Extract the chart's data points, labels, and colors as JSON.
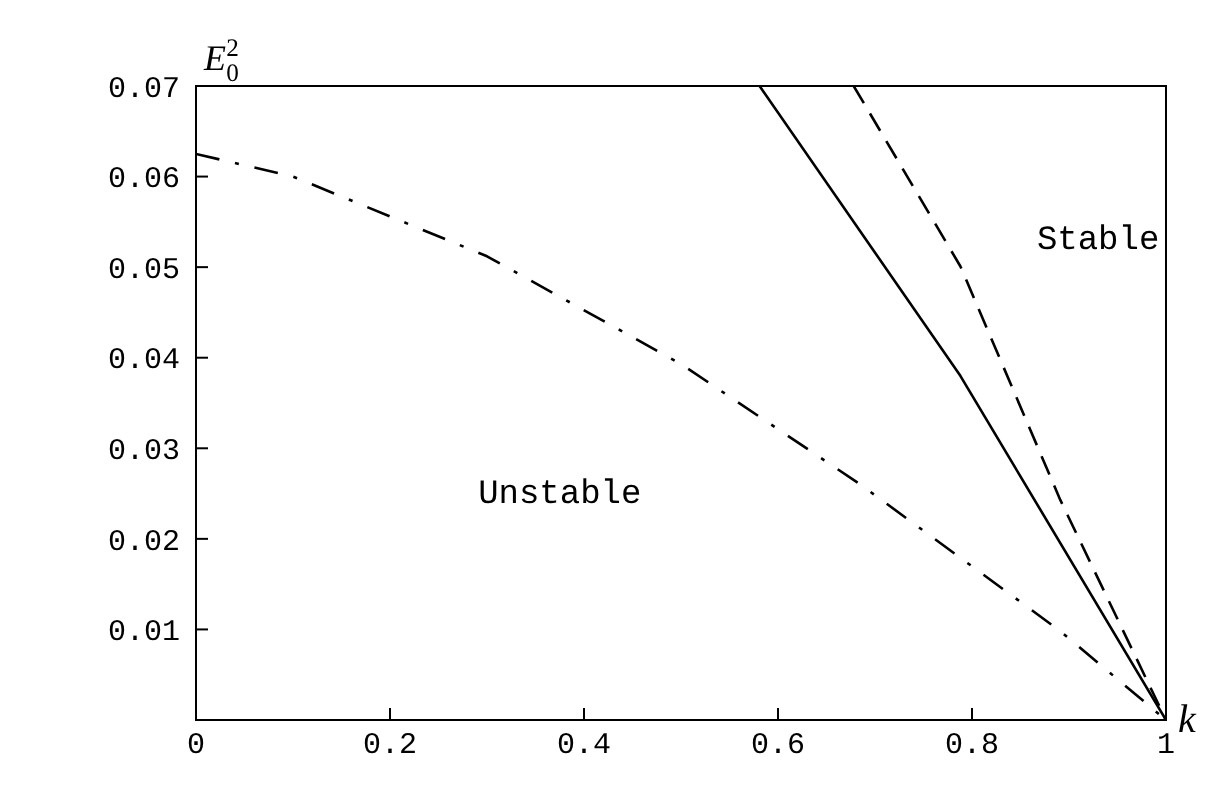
{
  "chart_data": {
    "type": "line",
    "xlabel": "k",
    "ylabel": "E$_{0}$$^{2}$",
    "xlim": [
      0,
      1
    ],
    "xticks": [
      0,
      0.2,
      0.4,
      0.6,
      0.8,
      1
    ],
    "ylim": [
      0,
      0.07
    ],
    "yticks": [
      0.01,
      0.02,
      0.03,
      0.04,
      0.05,
      0.06,
      0.07
    ],
    "marker": "none",
    "annotations": [
      "Stable",
      "Unstable"
    ],
    "series": [
      {
        "color": "#000000",
        "line_style": "dashdot",
        "x": [
          0,
          0.1,
          0.3,
          0.5,
          0.685,
          0.89,
          1
        ],
        "values": [
          0.0625,
          0.06,
          0.0512,
          0.0393,
          0.026,
          0.0099,
          0
        ]
      },
      {
        "color": "#000000",
        "line_style": "solid",
        "x": [
          0.581,
          0.788,
          1
        ],
        "values": [
          0.07,
          0.038,
          0
        ]
      },
      {
        "color": "#000000",
        "line_style": "dashed",
        "x": [
          0.678,
          0.788,
          0.891,
          1
        ],
        "values": [
          0.07,
          0.0501,
          0.0243,
          0
        ]
      }
    ]
  }
}
